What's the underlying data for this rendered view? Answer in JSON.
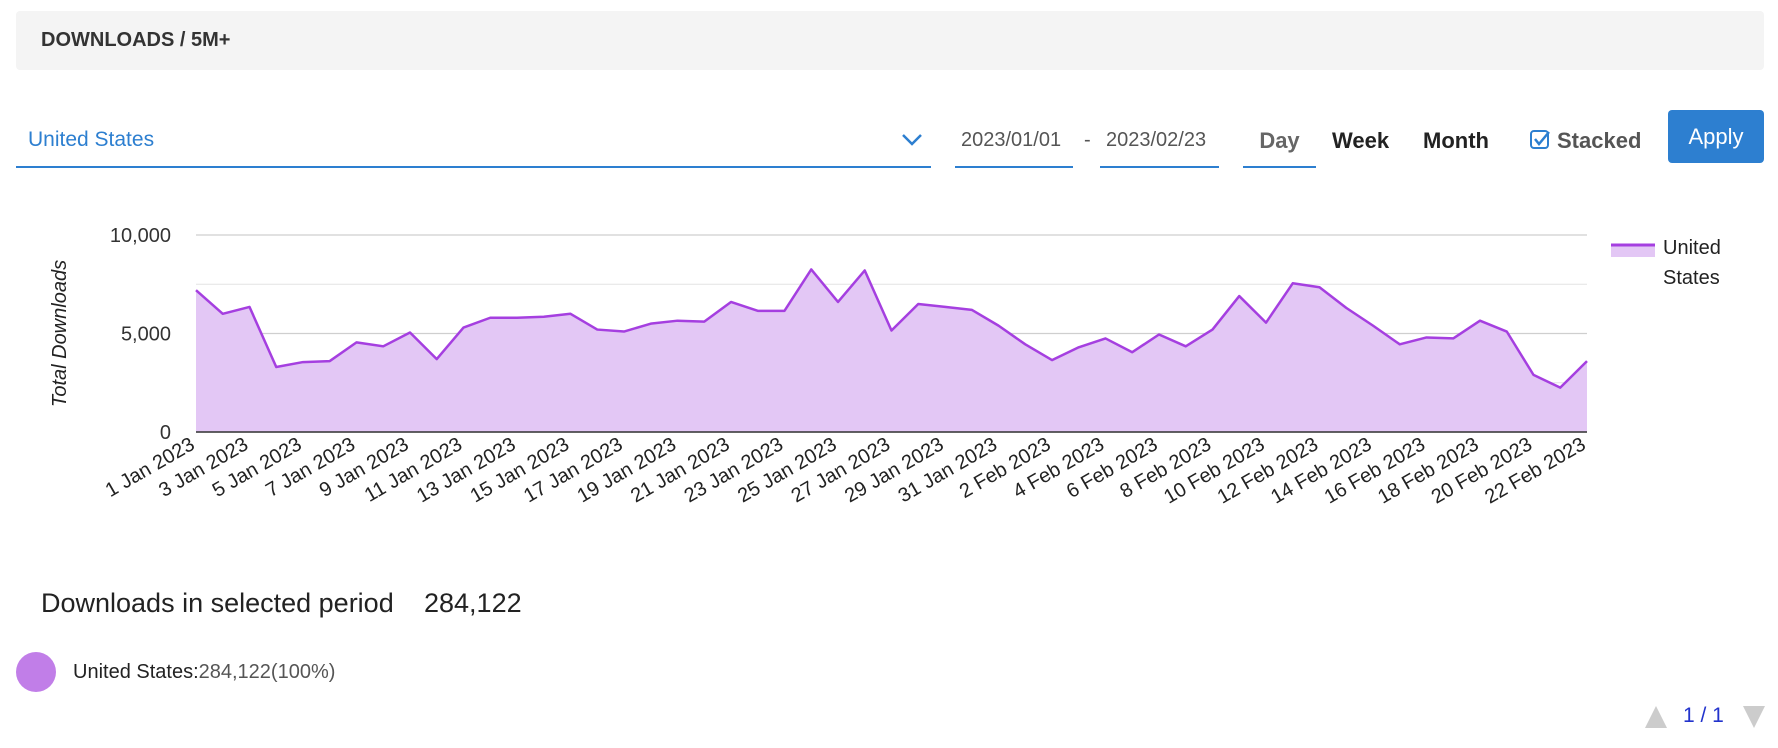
{
  "header": {
    "title": "DOWNLOADS / 5M+"
  },
  "controls": {
    "country": "United States",
    "date_from": "2023/01/01",
    "date_separator": "-",
    "date_to": "2023/02/23",
    "periods": [
      "Day",
      "Week",
      "Month"
    ],
    "stacked": "Stacked",
    "apply": "Apply"
  },
  "chart_data": {
    "type": "area",
    "ylabel": "Total Downloads",
    "categories": [
      "1 Jan 2023",
      null,
      "3 Jan 2023",
      null,
      "5 Jan 2023",
      null,
      "7 Jan 2023",
      null,
      "9 Jan 2023",
      null,
      "11 Jan 2023",
      null,
      "13 Jan 2023",
      null,
      "15 Jan 2023",
      null,
      "17 Jan 2023",
      null,
      "19 Jan 2023",
      null,
      "21 Jan 2023",
      null,
      "23 Jan 2023",
      null,
      "25 Jan 2023",
      null,
      "27 Jan 2023",
      null,
      "29 Jan 2023",
      null,
      "31 Jan 2023",
      null,
      "2 Feb 2023",
      null,
      "4 Feb 2023",
      null,
      "6 Feb 2023",
      null,
      "8 Feb 2023",
      null,
      "10 Feb 2023",
      null,
      "12 Feb 2023",
      null,
      "14 Feb 2023",
      null,
      "16 Feb 2023",
      null,
      "18 Feb 2023",
      null,
      "20 Feb 2023",
      null,
      "22 Feb 2023"
    ],
    "series": [
      {
        "name": "United States",
        "color": "#a53fe0",
        "fill": "#e3c7f5",
        "values": [
          7200,
          6000,
          6350,
          3300,
          3550,
          3600,
          4550,
          4350,
          5050,
          3700,
          5300,
          5800,
          5800,
          5850,
          6000,
          5200,
          5100,
          5500,
          5650,
          5600,
          6600,
          6150,
          6150,
          8250,
          6600,
          8200,
          5150,
          6500,
          6350,
          6200,
          5400,
          4450,
          3650,
          4300,
          4750,
          4050,
          4950,
          4350,
          5200,
          6900,
          5550,
          7550,
          7350,
          6300,
          5400,
          4450,
          4800,
          4750,
          5650,
          5100,
          2900,
          2250,
          3600
        ]
      }
    ],
    "ylim": [
      0,
      10000
    ],
    "yticks": [
      0,
      {
        "value": 5000,
        "label": "5,000"
      },
      {
        "value": 10000,
        "label": "10,000"
      }
    ],
    "minor_grid": [
      2500,
      7500
    ],
    "grid": true,
    "legend": "right"
  },
  "summary": {
    "label": "Downloads in selected period",
    "total": "284,122",
    "items": [
      {
        "name": "United States:",
        "value": "284,122",
        "share": "(100%)",
        "color": "#c17ee8"
      }
    ]
  },
  "pager": {
    "text": "1 / 1"
  }
}
